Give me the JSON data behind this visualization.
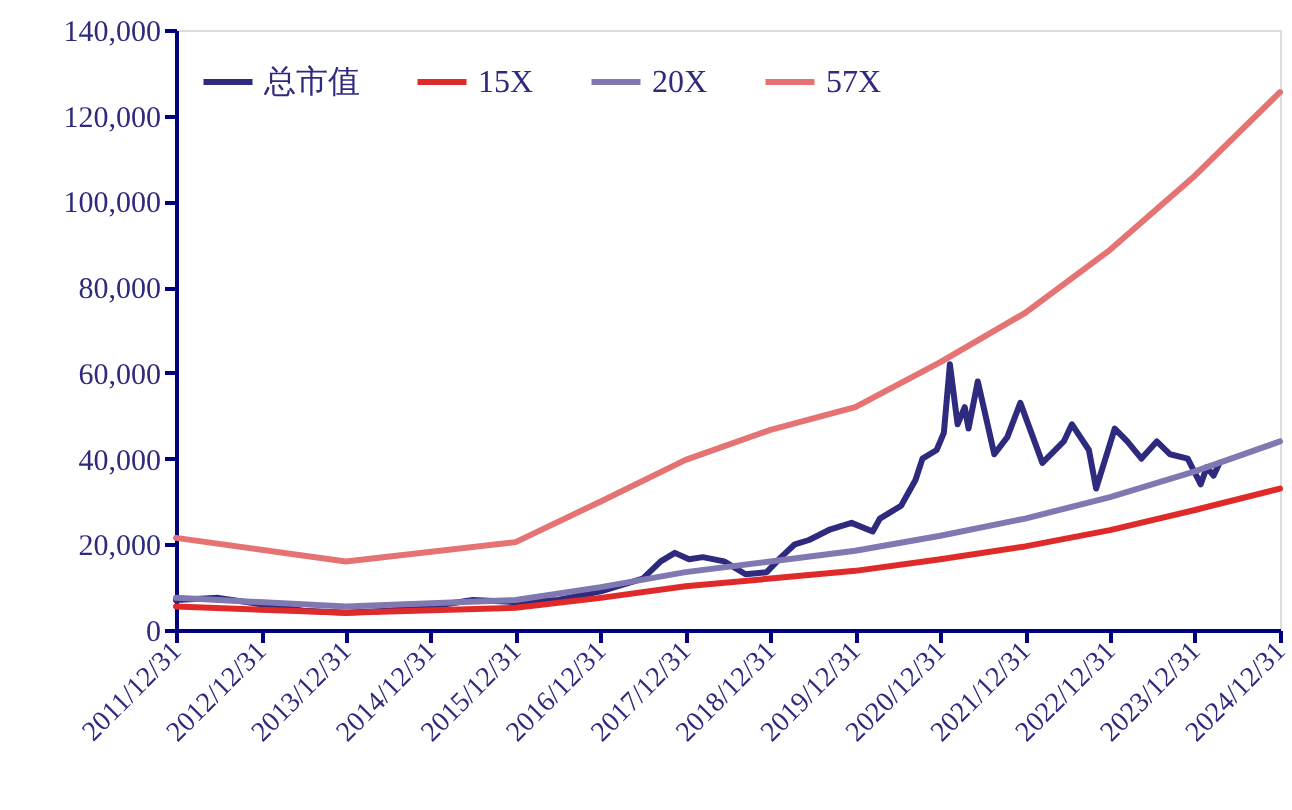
{
  "chart_data": {
    "type": "line",
    "xlim": [
      "2011-12-31",
      "2024-12-31"
    ],
    "xticks": [
      {
        "value": "2011-12-31",
        "label": "2011/12/31"
      },
      {
        "value": "2012-12-31",
        "label": "2012/12/31"
      },
      {
        "value": "2013-12-31",
        "label": "2013/12/31"
      },
      {
        "value": "2014-12-31",
        "label": "2014/12/31"
      },
      {
        "value": "2015-12-31",
        "label": "2015/12/31"
      },
      {
        "value": "2016-12-31",
        "label": "2016/12/31"
      },
      {
        "value": "2017-12-31",
        "label": "2017/12/31"
      },
      {
        "value": "2018-12-31",
        "label": "2018/12/31"
      },
      {
        "value": "2019-12-31",
        "label": "2019/12/31"
      },
      {
        "value": "2020-12-31",
        "label": "2020/12/31"
      },
      {
        "value": "2021-12-31",
        "label": "2021/12/31"
      },
      {
        "value": "2022-12-31",
        "label": "2022/12/31"
      },
      {
        "value": "2023-12-31",
        "label": "2023/12/31"
      },
      {
        "value": "2024-12-31",
        "label": "2024/12/31"
      }
    ],
    "ylim": [
      0,
      140000
    ],
    "yticks": [
      0,
      {
        "value": 20000,
        "label": "20,000"
      },
      {
        "value": 40000,
        "label": "40,000"
      },
      {
        "value": 60000,
        "label": "60,000"
      },
      {
        "value": 80000,
        "label": "80,000"
      },
      {
        "value": 100000,
        "label": "100,000"
      },
      {
        "value": 120000,
        "label": "120,000"
      },
      {
        "value": 140000,
        "label": "140,000"
      }
    ],
    "grid": false,
    "legend": "top left",
    "marker": "none",
    "line_style": "solid",
    "series": [
      {
        "name": "总市值",
        "color": "#2e2a7e",
        "x": [
          "2011-12-31",
          "2012-06-30",
          "2012-12-31",
          "2013-06-30",
          "2013-12-31",
          "2014-06-30",
          "2014-12-31",
          "2015-06-30",
          "2015-12-31",
          "2016-06-30",
          "2016-12-31",
          "2017-06-30",
          "2017-09-15",
          "2017-11-15",
          "2018-01-15",
          "2018-03-15",
          "2018-06-15",
          "2018-09-15",
          "2018-12-15",
          "2019-02-15",
          "2019-04-15",
          "2019-06-15",
          "2019-09-15",
          "2019-12-15",
          "2020-03-15",
          "2020-04-15",
          "2020-07-15",
          "2020-09-15",
          "2020-10-15",
          "2020-12-15",
          "2021-01-15",
          "2021-02-10",
          "2021-03-15",
          "2021-04-15",
          "2021-05-01",
          "2021-06-10",
          "2021-08-20",
          "2021-10-15",
          "2021-12-10",
          "2022-03-15",
          "2022-06-15",
          "2022-07-20",
          "2022-10-01",
          "2022-11-01",
          "2023-01-20",
          "2023-03-15",
          "2023-05-15",
          "2023-07-20",
          "2023-09-15",
          "2023-11-30",
          "2024-01-25",
          "2024-02-20",
          "2024-03-20",
          "2024-04-15"
        ],
        "values": [
          7000,
          7500,
          6000,
          4500,
          4000,
          4500,
          5500,
          7000,
          6500,
          7000,
          9000,
          12000,
          16000,
          18000,
          16500,
          17000,
          16000,
          13000,
          13500,
          17000,
          20000,
          21000,
          23500,
          25000,
          23000,
          26000,
          29000,
          35000,
          40000,
          42000,
          46000,
          62000,
          48000,
          52000,
          47000,
          58000,
          41000,
          45000,
          53000,
          39000,
          44000,
          48000,
          42000,
          33000,
          47000,
          44000,
          40000,
          44000,
          41000,
          40000,
          34000,
          38000,
          36000,
          39000
        ]
      },
      {
        "name": "15X",
        "color": "#e02a2a",
        "x": [
          "2011-12-31",
          "2013-12-31",
          "2015-12-31",
          "2016-12-31",
          "2017-12-31",
          "2018-12-31",
          "2019-12-31",
          "2020-12-31",
          "2021-12-31",
          "2022-12-31",
          "2023-12-31",
          "2024-12-31"
        ],
        "values": [
          5500,
          4000,
          5200,
          7500,
          10200,
          12000,
          13800,
          16500,
          19500,
          23300,
          28000,
          33000
        ]
      },
      {
        "name": "20X",
        "color": "#8078b0",
        "x": [
          "2011-12-31",
          "2013-12-31",
          "2015-12-31",
          "2016-12-31",
          "2017-12-31",
          "2018-12-31",
          "2019-12-31",
          "2020-12-31",
          "2021-12-31",
          "2022-12-31",
          "2023-12-31",
          "2024-12-31"
        ],
        "values": [
          7500,
          5500,
          7000,
          10000,
          13500,
          16000,
          18500,
          22000,
          26000,
          31000,
          37000,
          44000
        ]
      },
      {
        "name": "57X",
        "color": "#e57373",
        "x": [
          "2011-12-31",
          "2013-12-31",
          "2015-12-31",
          "2016-12-31",
          "2017-12-31",
          "2018-12-31",
          "2019-12-31",
          "2020-12-31",
          "2021-12-31",
          "2022-12-31",
          "2023-12-31",
          "2024-12-31"
        ],
        "values": [
          21500,
          16000,
          20500,
          30000,
          39700,
          46700,
          52000,
          62500,
          74000,
          88700,
          106000,
          125500
        ]
      }
    ]
  }
}
